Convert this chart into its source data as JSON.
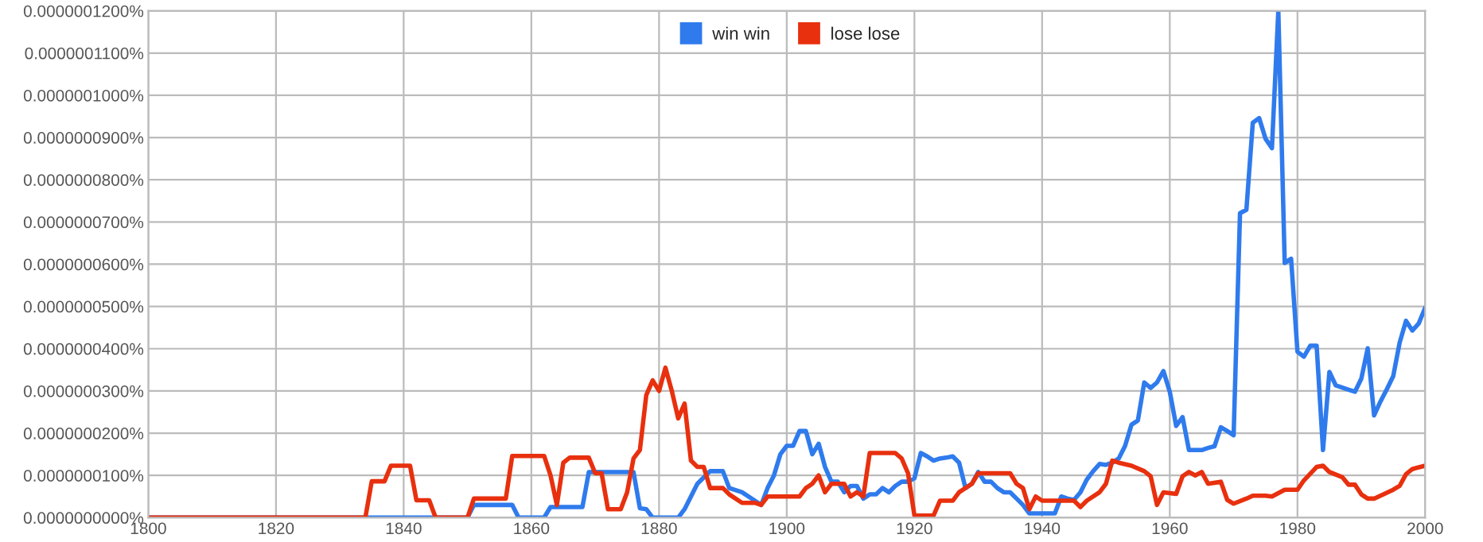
{
  "chart_data": {
    "type": "line",
    "xlim": [
      1800,
      2000
    ],
    "ylim": [
      0,
      1.2e-07
    ],
    "xticks": [
      1800,
      1820,
      1840,
      1860,
      1880,
      1900,
      1920,
      1940,
      1960,
      1980,
      2000
    ],
    "yticks": [
      {
        "value": 0,
        "label": "0.0000000000%"
      },
      {
        "value": 1e-08,
        "label": "0.0000000100%"
      },
      {
        "value": 2e-08,
        "label": "0.0000000200%"
      },
      {
        "value": 3e-08,
        "label": "0.0000000300%"
      },
      {
        "value": 4e-08,
        "label": "0.0000000400%"
      },
      {
        "value": 5e-08,
        "label": "0.0000000500%"
      },
      {
        "value": 6e-08,
        "label": "0.0000000600%"
      },
      {
        "value": 7e-08,
        "label": "0.0000000700%"
      },
      {
        "value": 8e-08,
        "label": "0.0000000800%"
      },
      {
        "value": 9e-08,
        "label": "0.0000000900%"
      },
      {
        "value": 1e-07,
        "label": "0.0000001000%"
      },
      {
        "value": 1.1e-07,
        "label": "0.0000001100%"
      },
      {
        "value": 1.2e-07,
        "label": "0.0000001200%"
      }
    ],
    "grid": true,
    "legend": "top",
    "marker": "none",
    "line_style": "solid",
    "series": [
      {
        "name": "win win",
        "color": "#2f7bed",
        "x": [
          1800,
          1850,
          1851,
          1857,
          1858,
          1862,
          1863,
          1868,
          1869,
          1876,
          1877,
          1878,
          1879,
          1883,
          1884,
          1885,
          1886,
          1887,
          1888,
          1890,
          1891,
          1893,
          1895,
          1896,
          1897,
          1898,
          1899,
          1900,
          1901,
          1902,
          1903,
          1904,
          1905,
          1906,
          1907,
          1908,
          1909,
          1910,
          1911,
          1912,
          1913,
          1914,
          1915,
          1916,
          1917,
          1918,
          1919,
          1920,
          1921,
          1922,
          1923,
          1924,
          1925,
          1926,
          1927,
          1928,
          1929,
          1930,
          1931,
          1932,
          1933,
          1934,
          1935,
          1936,
          1937,
          1938,
          1942,
          1943,
          1944,
          1945,
          1946,
          1947,
          1948,
          1949,
          1950,
          1951,
          1952,
          1953,
          1954,
          1955,
          1956,
          1957,
          1958,
          1959,
          1960,
          1961,
          1962,
          1963,
          1964,
          1965,
          1966,
          1967,
          1968,
          1969,
          1970,
          1971,
          1972,
          1973,
          1974,
          1975,
          1976,
          1977,
          1978,
          1979,
          1980,
          1981,
          1982,
          1983,
          1984,
          1985,
          1986,
          1987,
          1988,
          1989,
          1990,
          1991,
          1992,
          1993,
          1994,
          1995,
          1996,
          1997,
          1998,
          1999,
          2000
        ],
        "values": [
          0,
          0,
          3e-09,
          3e-09,
          0,
          0,
          2.5e-09,
          2.5e-09,
          1.08e-08,
          1.08e-08,
          2.2e-09,
          2e-09,
          0,
          0,
          2e-09,
          5e-09,
          8e-09,
          9.5e-09,
          1.1e-08,
          1.1e-08,
          7e-09,
          6e-09,
          4e-09,
          3e-09,
          7e-09,
          1e-08,
          1.5e-08,
          1.7e-08,
          1.7e-08,
          2.05e-08,
          2.05e-08,
          1.5e-08,
          1.75e-08,
          1.2e-08,
          8.5e-09,
          8.5e-09,
          6e-09,
          7.5e-09,
          7.5e-09,
          4.5e-09,
          5.5e-09,
          5.5e-09,
          7e-09,
          6e-09,
          7.5e-09,
          8.5e-09,
          8.5e-09,
          9.3e-09,
          1.53e-08,
          1.45e-08,
          1.35e-08,
          1.4e-08,
          1.42e-08,
          1.45e-08,
          1.3e-08,
          7e-09,
          8e-09,
          1.08e-08,
          8.5e-09,
          8.5e-09,
          7e-09,
          6e-09,
          6e-09,
          4.5e-09,
          3e-09,
          1e-09,
          1e-09,
          5e-09,
          4.5e-09,
          4.2e-09,
          6e-09,
          9e-09,
          1.1e-08,
          1.27e-08,
          1.25e-08,
          1.3e-08,
          1.4e-08,
          1.7e-08,
          2.2e-08,
          2.3e-08,
          3.2e-08,
          3.07e-08,
          3.2e-08,
          3.47e-08,
          2.98e-08,
          2.17e-08,
          2.38e-08,
          1.6e-08,
          1.6e-08,
          1.6e-08,
          1.65e-08,
          1.69e-08,
          2.14e-08,
          2.05e-08,
          1.95e-08,
          7.21e-08,
          7.29e-08,
          9.35e-08,
          9.46e-08,
          8.97e-08,
          8.75e-08,
          1.2e-07,
          6.03e-08,
          6.13e-08,
          3.93e-08,
          3.81e-08,
          4.07e-08,
          4.07e-08,
          1.6e-08,
          3.45e-08,
          3.13e-08,
          3.08e-08,
          3.03e-08,
          2.98e-08,
          3.29e-08,
          4.01e-08,
          2.42e-08,
          2.75e-08,
          3.04e-08,
          3.35e-08,
          4.14e-08,
          4.66e-08,
          4.43e-08,
          4.6e-08,
          4.97e-08
        ]
      },
      {
        "name": "lose lose",
        "color": "#e8300e",
        "x": [
          1800,
          1834,
          1835,
          1837,
          1838,
          1841,
          1842,
          1844,
          1845,
          1850,
          1851,
          1856,
          1857,
          1862,
          1863,
          1864,
          1865,
          1866,
          1869,
          1870,
          1871,
          1872,
          1874,
          1875,
          1876,
          1877,
          1878,
          1879,
          1880,
          1881,
          1882,
          1883,
          1884,
          1885,
          1886,
          1887,
          1888,
          1890,
          1891,
          1893,
          1895,
          1896,
          1897,
          1902,
          1903,
          1904,
          1905,
          1906,
          1907,
          1909,
          1910,
          1911,
          1912,
          1913,
          1917,
          1918,
          1919,
          1920,
          1923,
          1924,
          1926,
          1927,
          1929,
          1930,
          1935,
          1936,
          1937,
          1938,
          1939,
          1940,
          1945,
          1946,
          1947,
          1949,
          1950,
          1951,
          1952,
          1954,
          1956,
          1957,
          1958,
          1959,
          1961,
          1962,
          1963,
          1964,
          1965,
          1966,
          1968,
          1969,
          1970,
          1972,
          1973,
          1975,
          1976,
          1978,
          1980,
          1981,
          1983,
          1984,
          1985,
          1987,
          1988,
          1989,
          1990,
          1991,
          1992,
          1994,
          1995,
          1996,
          1997,
          1998,
          2000
        ],
        "values": [
          0,
          0,
          8.6e-09,
          8.6e-09,
          1.23e-08,
          1.23e-08,
          4.1e-09,
          4.1e-09,
          0,
          0,
          4.5e-09,
          4.5e-09,
          1.46e-08,
          1.46e-08,
          1e-08,
          3e-09,
          1.3e-08,
          1.42e-08,
          1.42e-08,
          1.05e-08,
          1.05e-08,
          2e-09,
          2e-09,
          6e-09,
          1.4e-08,
          1.6e-08,
          2.9e-08,
          3.25e-08,
          3e-08,
          3.55e-08,
          3e-08,
          2.35e-08,
          2.7e-08,
          1.35e-08,
          1.2e-08,
          1.2e-08,
          7e-09,
          7e-09,
          5.5e-09,
          3.5e-09,
          3.5e-09,
          3e-09,
          5e-09,
          5e-09,
          7e-09,
          8e-09,
          1e-08,
          6e-09,
          8e-09,
          8e-09,
          5e-09,
          6e-09,
          5e-09,
          1.53e-08,
          1.53e-08,
          1.4e-08,
          1.05e-08,
          5e-10,
          5e-10,
          4e-09,
          4e-09,
          6e-09,
          8e-09,
          1.05e-08,
          1.05e-08,
          8e-09,
          7e-09,
          2e-09,
          5e-09,
          4e-09,
          4e-09,
          2.5e-09,
          4e-09,
          6e-09,
          8e-09,
          1.35e-08,
          1.3e-08,
          1.23e-08,
          1.1e-08,
          9.8e-09,
          3e-09,
          6e-09,
          5.6e-09,
          9.8e-09,
          1.08e-08,
          1e-08,
          1.08e-08,
          8e-09,
          8.5e-09,
          4.2e-09,
          3.3e-09,
          4.5e-09,
          5.2e-09,
          5.2e-09,
          5e-09,
          6.6e-09,
          6.6e-09,
          8.8e-09,
          1.2e-08,
          1.23e-08,
          1.08e-08,
          9.6e-09,
          7.8e-09,
          7.8e-09,
          5.5e-09,
          4.5e-09,
          4.5e-09,
          5.9e-09,
          6.6e-09,
          7.5e-09,
          1.03e-08,
          1.15e-08,
          1.23e-08
        ]
      }
    ]
  }
}
